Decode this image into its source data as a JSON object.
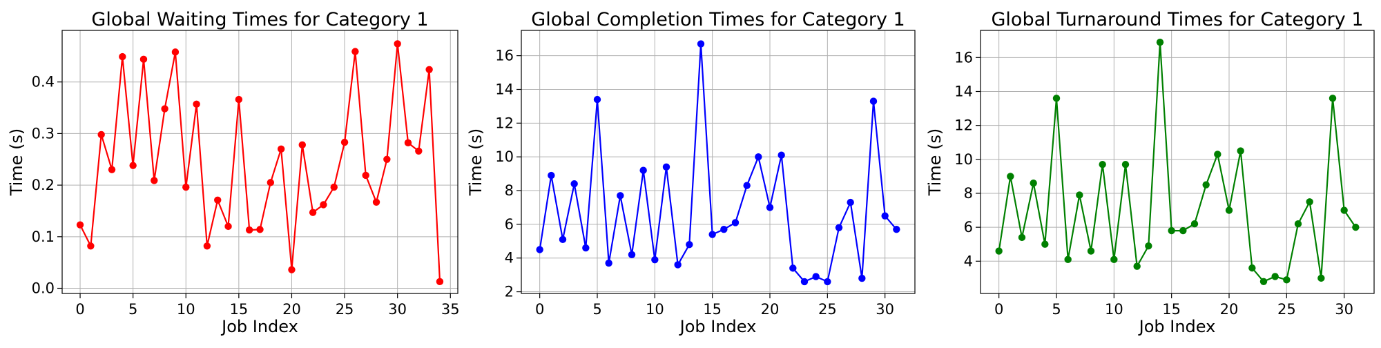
{
  "chart_data": [
    {
      "type": "line",
      "title": "Global Waiting Times for Category 1",
      "xlabel": "Job Index",
      "ylabel": "Time (s)",
      "color": "#ff0000",
      "marker": "circle",
      "grid": true,
      "xlim": [
        -1.7,
        35.7
      ],
      "ylim": [
        -0.01,
        0.5
      ],
      "xticks": [
        "0",
        "5",
        "10",
        "15",
        "20",
        "25",
        "30",
        "35"
      ],
      "xtick_values": [
        0,
        5,
        10,
        15,
        20,
        25,
        30,
        35
      ],
      "yticks": [
        "0.0",
        "0.1",
        "0.2",
        "0.3",
        "0.4"
      ],
      "ytick_values": [
        0.0,
        0.1,
        0.2,
        0.3,
        0.4
      ],
      "x": [
        0,
        1,
        2,
        3,
        4,
        5,
        6,
        7,
        8,
        9,
        10,
        11,
        12,
        13,
        14,
        15,
        16,
        17,
        18,
        19,
        20,
        21,
        22,
        23,
        24,
        25,
        26,
        27,
        28,
        29,
        30,
        31,
        32,
        33,
        34
      ],
      "y": [
        0.123,
        0.082,
        0.298,
        0.23,
        0.449,
        0.238,
        0.444,
        0.209,
        0.348,
        0.458,
        0.196,
        0.357,
        0.082,
        0.171,
        0.12,
        0.366,
        0.113,
        0.114,
        0.205,
        0.27,
        0.036,
        0.278,
        0.147,
        0.162,
        0.196,
        0.283,
        0.459,
        0.219,
        0.167,
        0.25,
        0.474,
        0.282,
        0.266,
        0.424,
        0.013
      ]
    },
    {
      "type": "line",
      "title": "Global Completion Times for Category 1",
      "xlabel": "Job Index",
      "ylabel": "Time (s)",
      "color": "#0000ff",
      "marker": "circle",
      "grid": true,
      "xlim": [
        -1.6,
        32.6
      ],
      "ylim": [
        1.9,
        17.5
      ],
      "xticks": [
        "0",
        "5",
        "10",
        "15",
        "20",
        "25",
        "30"
      ],
      "xtick_values": [
        0,
        5,
        10,
        15,
        20,
        25,
        30
      ],
      "yticks": [
        "2",
        "4",
        "6",
        "8",
        "10",
        "12",
        "14",
        "16"
      ],
      "ytick_values": [
        2,
        4,
        6,
        8,
        10,
        12,
        14,
        16
      ],
      "x": [
        0,
        1,
        2,
        3,
        4,
        5,
        6,
        7,
        8,
        9,
        10,
        11,
        12,
        13,
        14,
        15,
        16,
        17,
        18,
        19,
        20,
        21,
        22,
        23,
        24,
        25,
        26,
        27,
        28,
        29,
        30,
        31
      ],
      "y": [
        4.5,
        8.9,
        5.1,
        8.4,
        4.6,
        13.4,
        3.7,
        7.7,
        4.2,
        9.2,
        3.9,
        9.4,
        3.6,
        4.8,
        16.7,
        5.4,
        5.7,
        6.1,
        8.3,
        10.0,
        7.0,
        10.1,
        3.4,
        2.6,
        2.9,
        2.6,
        5.8,
        7.3,
        2.8,
        13.3,
        6.5,
        5.7
      ]
    },
    {
      "type": "line",
      "title": "Global Turnaround Times for Category 1",
      "xlabel": "Job Index",
      "ylabel": "Time (s)",
      "color": "#008000",
      "marker": "circle",
      "grid": true,
      "xlim": [
        -1.6,
        32.6
      ],
      "ylim": [
        2.1,
        17.6
      ],
      "xticks": [
        "0",
        "5",
        "10",
        "15",
        "20",
        "25",
        "30"
      ],
      "xtick_values": [
        0,
        5,
        10,
        15,
        20,
        25,
        30
      ],
      "yticks": [
        "4",
        "6",
        "8",
        "10",
        "12",
        "14",
        "16"
      ],
      "ytick_values": [
        4,
        6,
        8,
        10,
        12,
        14,
        16
      ],
      "x": [
        0,
        1,
        2,
        3,
        4,
        5,
        6,
        7,
        8,
        9,
        10,
        11,
        12,
        13,
        14,
        15,
        16,
        17,
        18,
        19,
        20,
        21,
        22,
        23,
        24,
        25,
        26,
        27,
        28,
        29,
        30,
        31
      ],
      "y": [
        4.6,
        9.0,
        5.4,
        8.6,
        5.0,
        13.6,
        4.1,
        7.9,
        4.6,
        9.7,
        4.1,
        9.7,
        3.7,
        4.9,
        16.9,
        5.8,
        5.8,
        6.2,
        8.5,
        10.3,
        7.0,
        10.5,
        3.6,
        2.8,
        3.1,
        2.9,
        6.2,
        7.5,
        3.0,
        13.6,
        7.0,
        6.0
      ]
    }
  ]
}
